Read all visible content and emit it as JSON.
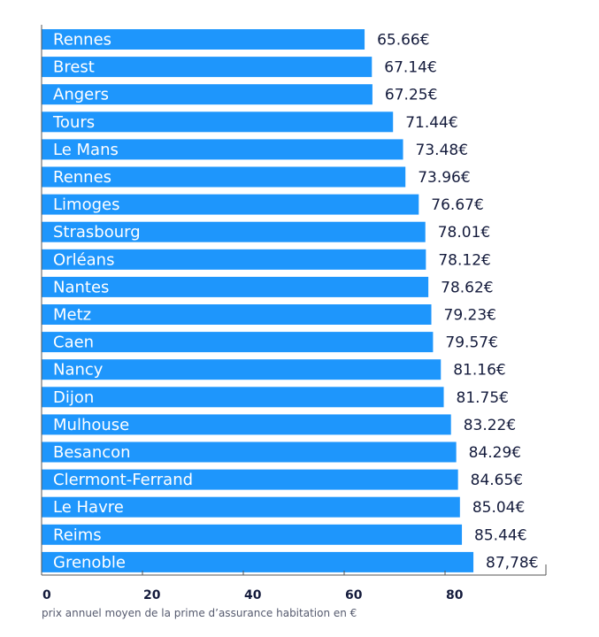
{
  "chart_data": {
    "type": "bar",
    "orientation": "horizontal",
    "categories": [
      "Rennes",
      "Brest",
      "Angers",
      "Tours",
      "Le Mans",
      "Rennes",
      "Limoges",
      "Strasbourg",
      "Orléans",
      "Nantes",
      "Metz",
      "Caen",
      "Nancy",
      "Dijon",
      "Mulhouse",
      "Besancon",
      "Clermont-Ferrand",
      "Le Havre",
      "Reims",
      "Grenoble"
    ],
    "values": [
      65.66,
      67.14,
      67.25,
      71.44,
      73.48,
      73.96,
      76.67,
      78.01,
      78.12,
      78.62,
      79.23,
      79.57,
      81.16,
      81.75,
      83.22,
      84.29,
      84.65,
      85.04,
      85.44,
      87.78
    ],
    "value_labels": [
      "65.66€",
      "67.14€",
      "67.25€",
      "71.44€",
      "73.48€",
      "73.96€",
      "76.67€",
      "78.01€",
      "78.12€",
      "78.62€",
      "79.23€",
      "79.57€",
      "81.16€",
      "81.75€",
      "83.22€",
      "84.29€",
      "84.65€",
      "85.04€",
      "85.44€",
      "87,78€"
    ],
    "xticks": [
      "0",
      "20",
      "40",
      "60",
      "80"
    ],
    "xtick_values": [
      0,
      20,
      40,
      60,
      80
    ],
    "xlabel": "prix annuel moyen de la prime d’assurance habitation en €",
    "ylabel": "",
    "xlim": [
      0,
      100
    ],
    "grid": false,
    "colors": {
      "bar": "#1e96fc",
      "text": "#141b3c",
      "axis": "#555555"
    }
  }
}
